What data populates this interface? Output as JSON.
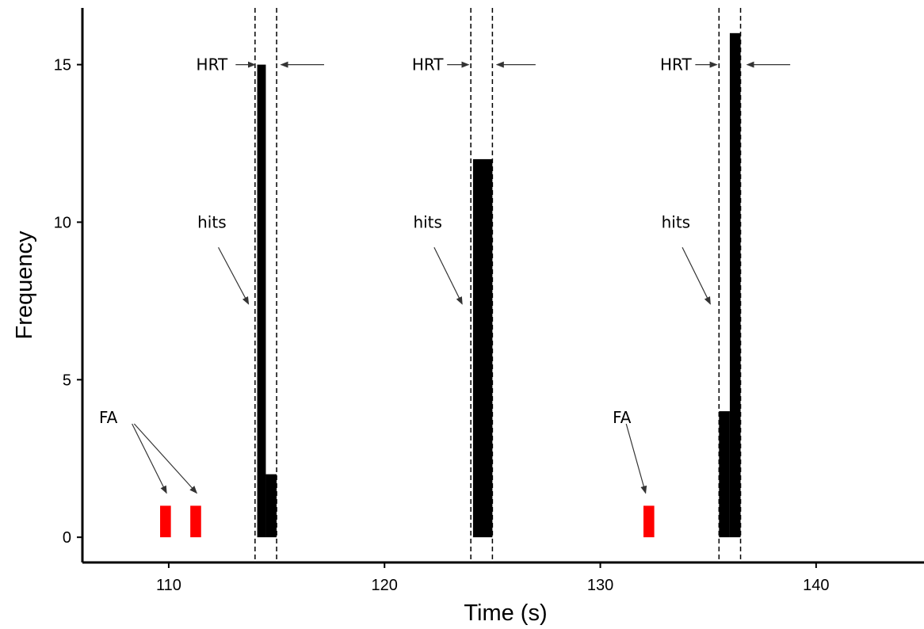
{
  "chart_data": {
    "type": "bar",
    "title": "",
    "xlabel": "Time (s)",
    "ylabel": "Frequency",
    "xlim": [
      106,
      145
    ],
    "ylim": [
      -0.8,
      16.8
    ],
    "xticks": [
      110,
      120,
      130,
      140
    ],
    "yticks": [
      0,
      5,
      10,
      15
    ],
    "grid": false,
    "colors": {
      "hit": "#000000",
      "fa": "#ff0000"
    },
    "series": [
      {
        "name": "hits",
        "bars": [
          {
            "x0": 114.1,
            "x1": 114.5,
            "y": 15
          },
          {
            "x0": 114.5,
            "x1": 115.0,
            "y": 2
          },
          {
            "x0": 124.1,
            "x1": 125.0,
            "y": 12
          },
          {
            "x0": 135.5,
            "x1": 136.0,
            "y": 4
          },
          {
            "x0": 136.0,
            "x1": 136.5,
            "y": 16
          }
        ]
      },
      {
        "name": "FA",
        "bars": [
          {
            "x0": 109.6,
            "x1": 110.1,
            "y": 1
          },
          {
            "x0": 111.0,
            "x1": 111.5,
            "y": 1
          },
          {
            "x0": 132.0,
            "x1": 132.5,
            "y": 1
          }
        ]
      }
    ],
    "windows": [
      {
        "x0": 114.0,
        "x1": 115.0
      },
      {
        "x0": 124.0,
        "x1": 125.0
      },
      {
        "x0": 135.5,
        "x1": 136.5
      }
    ],
    "annotations": {
      "hrt": [
        {
          "label": "HRT",
          "tx": 112.0,
          "ty": 15.0,
          "left_arrow": [
            113.1,
            114.0,
            15.0
          ],
          "right_arrow": [
            117.2,
            115.2,
            15.0
          ]
        },
        {
          "label": "HRT",
          "tx": 122.0,
          "ty": 15.0,
          "left_arrow": [
            122.9,
            123.9,
            15.0
          ],
          "right_arrow": [
            127.0,
            125.2,
            15.0
          ]
        },
        {
          "label": "HRT",
          "tx": 133.5,
          "ty": 15.0,
          "left_arrow": [
            134.4,
            135.4,
            15.0
          ],
          "right_arrow": [
            138.8,
            136.8,
            15.0
          ]
        }
      ],
      "hits": [
        {
          "label": "hits",
          "tx": 112.0,
          "ty": 10.0,
          "arrow": [
            112.3,
            9.2,
            113.7,
            7.4
          ]
        },
        {
          "label": "hits",
          "tx": 122.0,
          "ty": 10.0,
          "arrow": [
            122.3,
            9.2,
            123.6,
            7.4
          ]
        },
        {
          "label": "hits",
          "tx": 133.5,
          "ty": 10.0,
          "arrow": [
            133.8,
            9.2,
            135.1,
            7.4
          ]
        }
      ],
      "fa": [
        {
          "label": "FA",
          "tx": 107.2,
          "ty": 3.8,
          "arrows": [
            [
              108.3,
              3.6,
              109.9,
              1.4
            ],
            [
              108.4,
              3.6,
              111.3,
              1.4
            ]
          ]
        },
        {
          "label": "FA",
          "tx": 131.0,
          "ty": 3.8,
          "arrows": [
            [
              131.2,
              3.6,
              132.1,
              1.4
            ]
          ]
        }
      ]
    }
  }
}
